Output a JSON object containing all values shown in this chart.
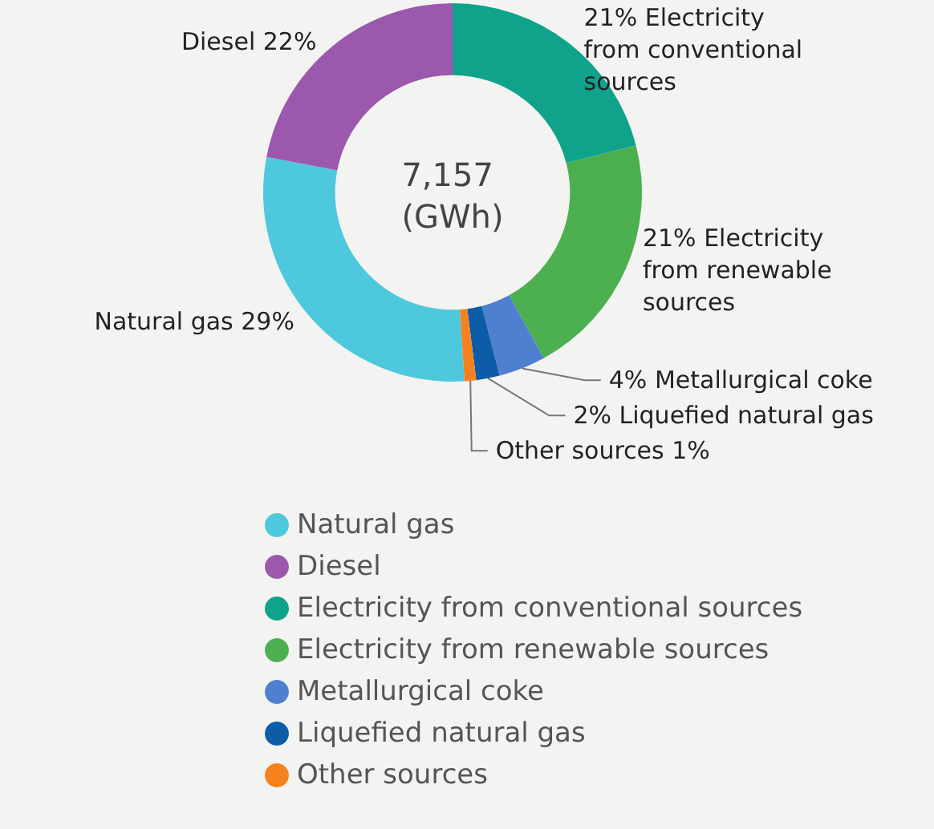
{
  "chart_data": {
    "type": "donut",
    "categories": [
      "Natural gas",
      "Diesel",
      "Electricity from conventional sources",
      "Electricity from renewable sources",
      "Metallurgical coke",
      "Liquefied natural gas",
      "Other sources"
    ],
    "values": [
      29,
      22,
      21,
      21,
      4,
      2,
      1
    ],
    "value_labels": [
      "Natural gas 29%",
      "Diesel 22%",
      "21% Electricity from conventional sources",
      "21% Electricity from renewable sources",
      "4% Metallurgical coke",
      "2% Liquefied natural gas",
      "Other sources 1%"
    ],
    "colors": [
      "#4ec8dd",
      "#9b58ad",
      "#10a38b",
      "#4caf50",
      "#4f80cf",
      "#0d5ca8",
      "#f5821f"
    ],
    "annotations": [
      "7,157 (GWh)"
    ],
    "legend": "bottom"
  }
}
